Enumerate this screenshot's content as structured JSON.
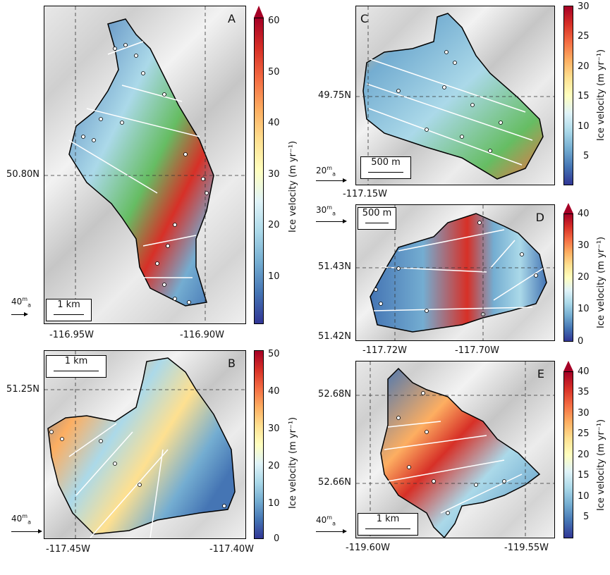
{
  "colors": {
    "jet_scale": [
      "#313695",
      "#4575b4",
      "#74add1",
      "#abd9e9",
      "#e0f3f8",
      "#ffffbf",
      "#fee090",
      "#fdae61",
      "#f46d43",
      "#d73027",
      "#a50026"
    ],
    "survey_line": "#ffffff",
    "point_fill": "#ffffff",
    "point_stroke": "#000000"
  },
  "colorbar_label": "Ice velocity (m yr⁻¹)",
  "panels": {
    "A": {
      "letter": "A",
      "lat_labels": [
        "50.80N"
      ],
      "lon_labels": [
        "-116.95W",
        "-116.90W"
      ],
      "scale": "1 km",
      "vel_ref": "40",
      "cbar_ticks": [
        "60",
        "50",
        "40",
        "30",
        "20",
        "10"
      ],
      "cbar_extend_top": true
    },
    "B": {
      "letter": "B",
      "lat_labels": [
        "51.25N"
      ],
      "lon_labels": [
        "-117.45W",
        "-117.40W"
      ],
      "scale": "1 km",
      "vel_ref": "40",
      "cbar_ticks": [
        "50",
        "40",
        "30",
        "20",
        "10",
        "0"
      ],
      "cbar_extend_top": false
    },
    "C": {
      "letter": "C",
      "lat_labels": [
        "49.75N"
      ],
      "lon_labels": [
        "-117.15W"
      ],
      "scale": "500 m",
      "vel_ref": "20",
      "cbar_ticks": [
        "30",
        "25",
        "20",
        "15",
        "10",
        "5"
      ],
      "cbar_extend_top": false
    },
    "D": {
      "letter": "D",
      "lat_labels": [
        "51.43N",
        "51.42N"
      ],
      "lon_labels": [
        "-117.72W",
        "-117.70W"
      ],
      "scale": "500 m",
      "vel_ref": "30",
      "cbar_ticks": [
        "40",
        "30",
        "20",
        "10",
        "0"
      ],
      "cbar_extend_top": true
    },
    "E": {
      "letter": "E",
      "lat_labels": [
        "52.68N",
        "52.66N"
      ],
      "lon_labels": [
        "-119.60W",
        "-119.55W"
      ],
      "scale": "1 km",
      "vel_ref": "40",
      "cbar_ticks": [
        "40",
        "35",
        "30",
        "25",
        "20",
        "15",
        "10",
        "5"
      ],
      "cbar_extend_top": true
    }
  },
  "vel_unit_num": "m",
  "vel_unit_den": "a"
}
